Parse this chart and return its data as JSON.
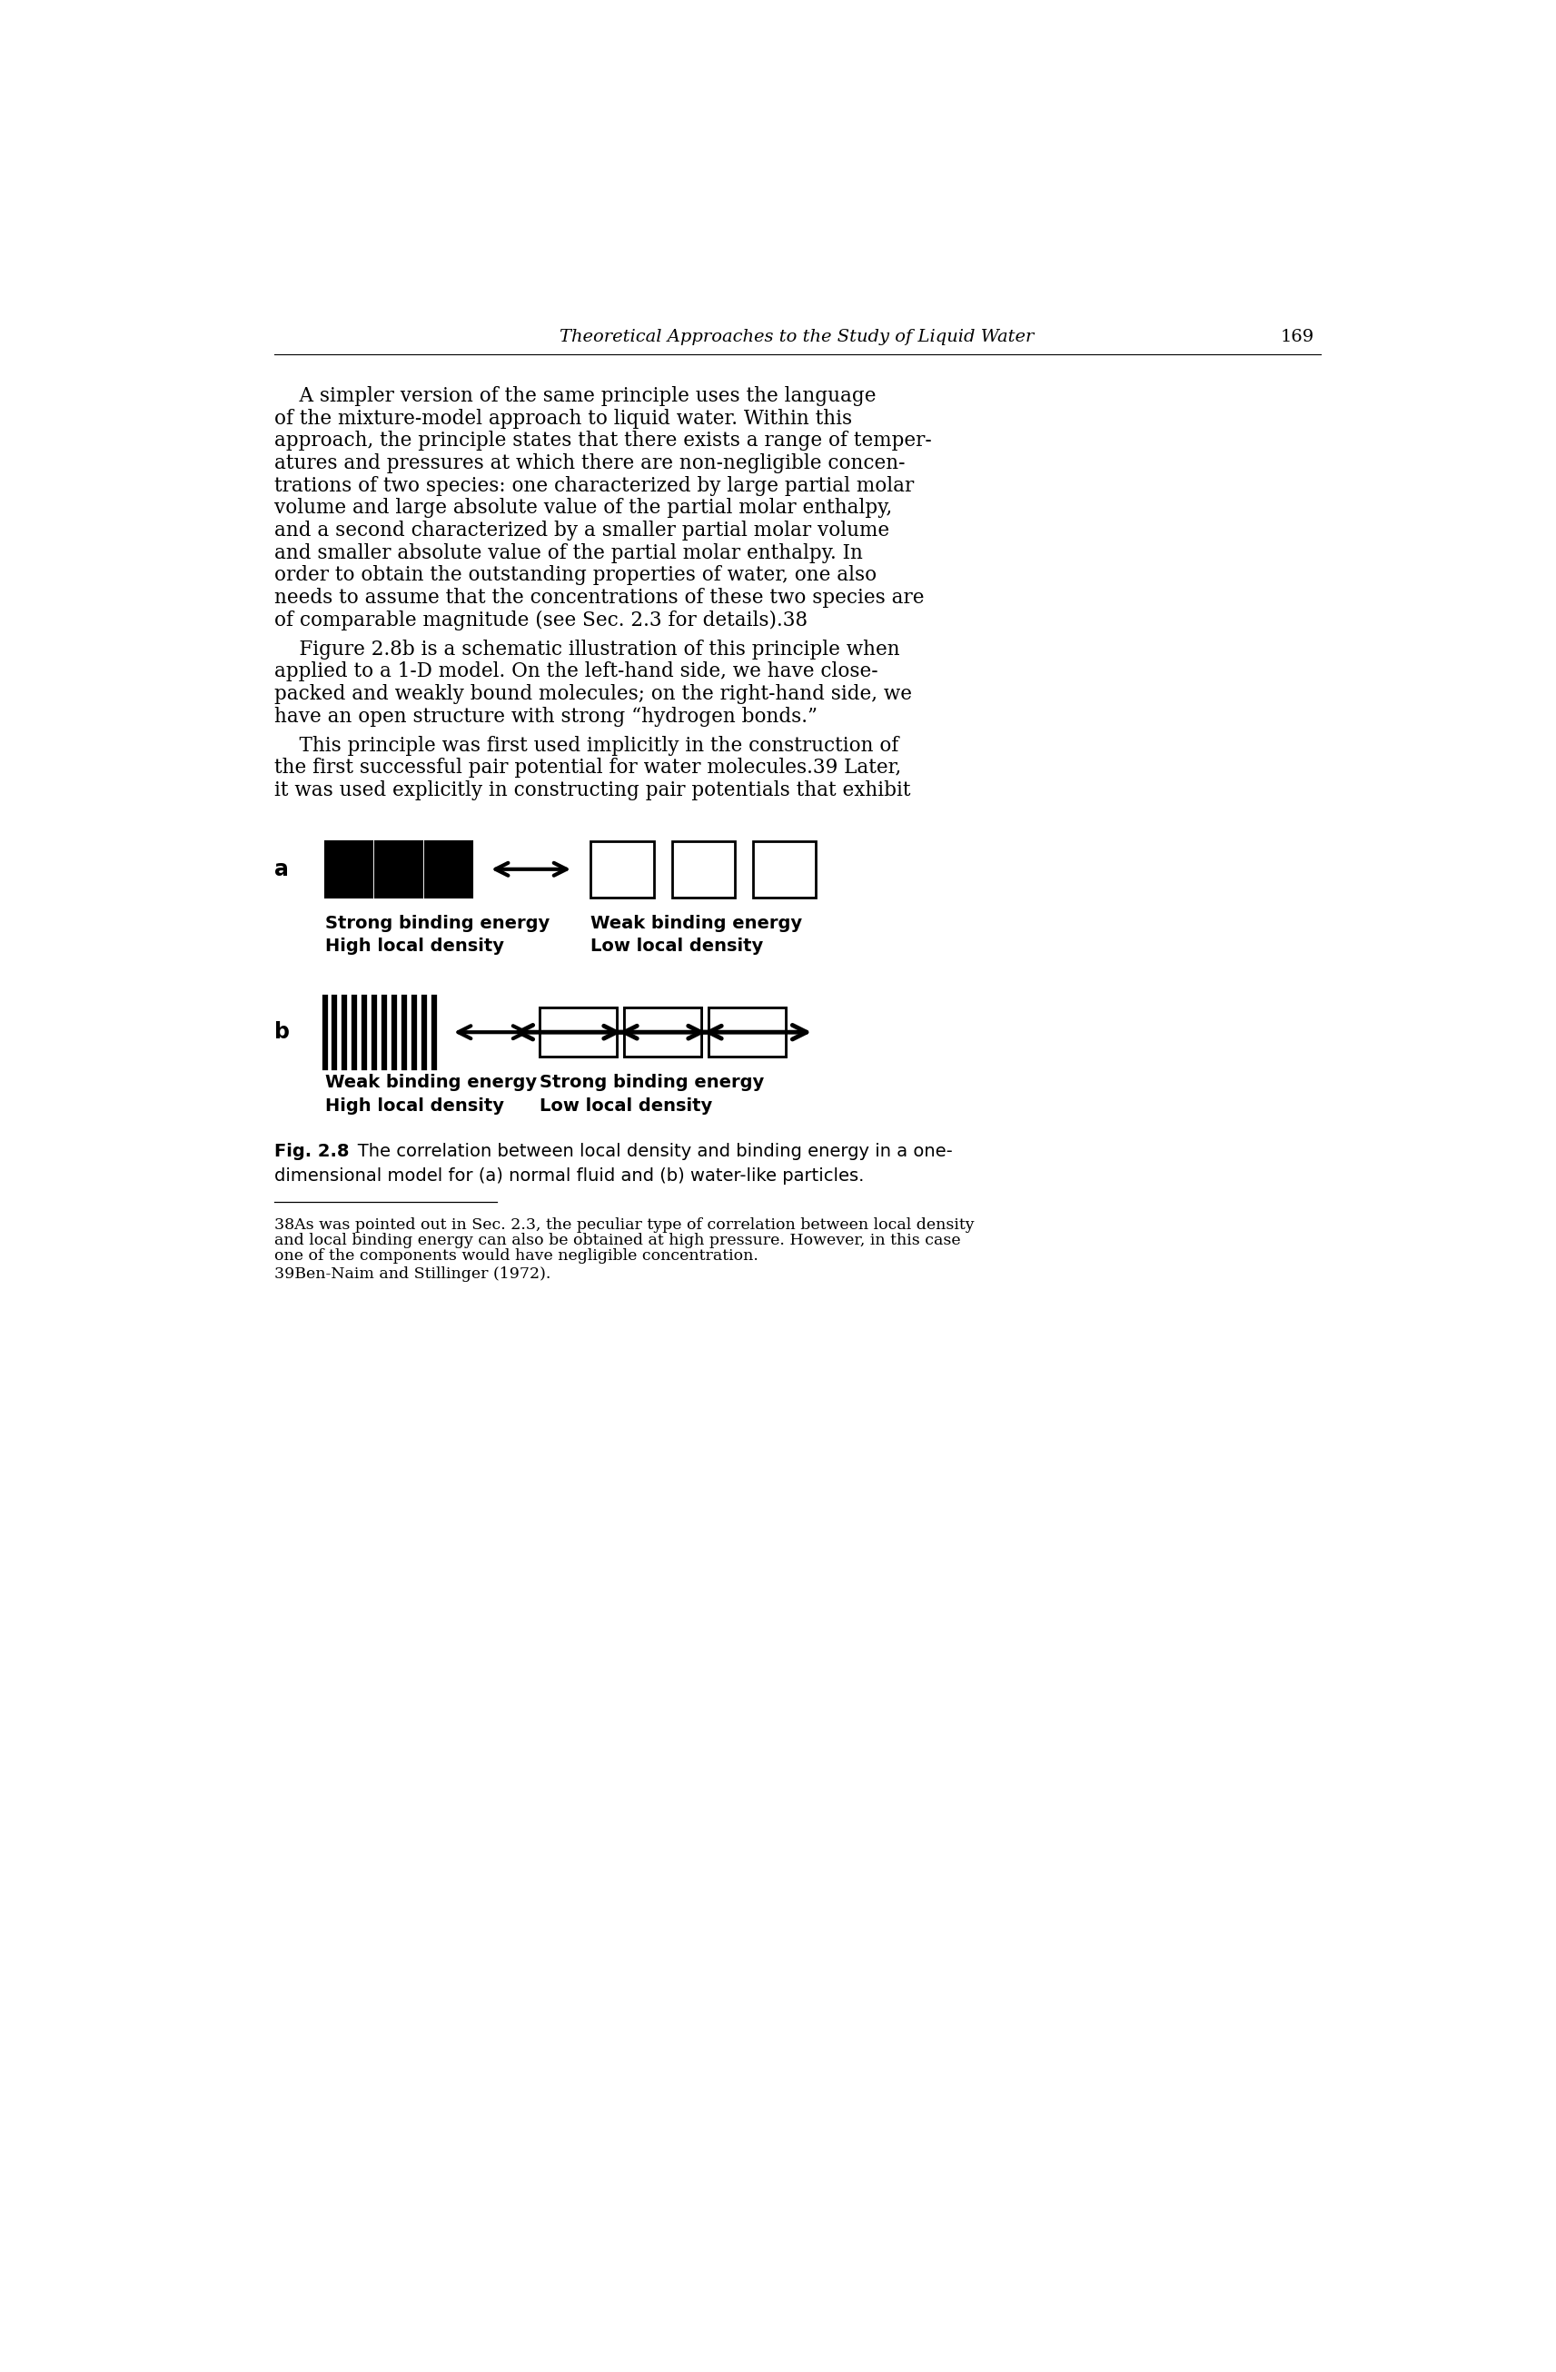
{
  "bg_color": "#ffffff",
  "header_italic": "Theoretical Approaches to the Study of Liquid Water",
  "header_page": "169",
  "para1_lines": [
    "    A simpler version of the same principle uses the language",
    "of the mixture-model approach to liquid water. Within this",
    "approach, the principle states that there exists a range of temper-",
    "atures and pressures at which there are non-negligible concen-",
    "trations of two species: one characterized by large partial molar",
    "volume and large absolute value of the partial molar enthalpy,",
    "and a second characterized by a smaller partial molar volume",
    "and smaller absolute value of the partial molar enthalpy. In",
    "order to obtain the outstanding properties of water, one also",
    "needs to assume that the concentrations of these two species are",
    "of comparable magnitude (see Sec. 2.3 for details).38"
  ],
  "para2_lines": [
    "    Figure 2.8b is a schematic illustration of this principle when",
    "applied to a 1-D model. On the left-hand side, we have close-",
    "packed and weakly bound molecules; on the right-hand side, we",
    "have an open structure with strong “hydrogen bonds.”"
  ],
  "para3_lines": [
    "    This principle was first used implicitly in the construction of",
    "the first successful pair potential for water molecules.39 Later,",
    "it was used explicitly in constructing pair potentials that exhibit"
  ],
  "label_a_left1": "Strong binding energy",
  "label_a_left2": "High local density",
  "label_a_right1": "Weak binding energy",
  "label_a_right2": "Low local density",
  "label_b_left1": "Weak binding energy",
  "label_b_left2": "High local density",
  "label_b_right1": "Strong binding energy",
  "label_b_right2": "Low local density",
  "fig_bold": "Fig. 2.8",
  "fig_caption_line1": "   The correlation between local density and binding energy in a one-",
  "fig_caption_line2": "dimensional model for (a) normal fluid and (b) water-like particles.",
  "fn1_lines": [
    "38As was pointed out in Sec. 2.3, the peculiar type of correlation between local density",
    "and local binding energy can also be obtained at high pressure. However, in this case",
    "one of the components would have negligible concentration."
  ],
  "fn2": "39Ben-Naim and Stillinger (1972)."
}
